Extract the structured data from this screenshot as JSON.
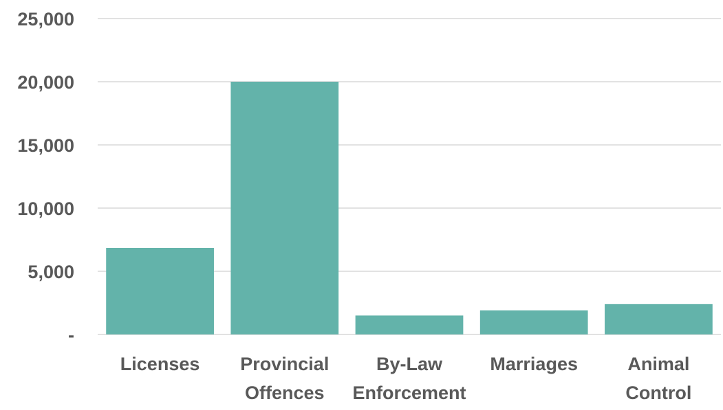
{
  "chart_data": {
    "type": "bar",
    "title": "",
    "xlabel": "",
    "ylabel": "",
    "categories": [
      [
        "Licenses"
      ],
      [
        "Provincial",
        "Offences"
      ],
      [
        "By-Law",
        "Enforcement"
      ],
      [
        "Marriages"
      ],
      [
        "Animal",
        "Control"
      ]
    ],
    "values": [
      6850,
      20000,
      1500,
      1900,
      2400
    ],
    "ylim": [
      0,
      25000
    ],
    "yticks": [
      0,
      5000,
      10000,
      15000,
      20000,
      25000
    ],
    "ytick_labels": [
      "-",
      "5,000",
      "10,000",
      "15,000",
      "20,000",
      "25,000"
    ],
    "grid": true,
    "legend": "none",
    "colors": {
      "bar": "#63B3AA",
      "grid": "#D9D9D9",
      "text": "#595959"
    }
  }
}
